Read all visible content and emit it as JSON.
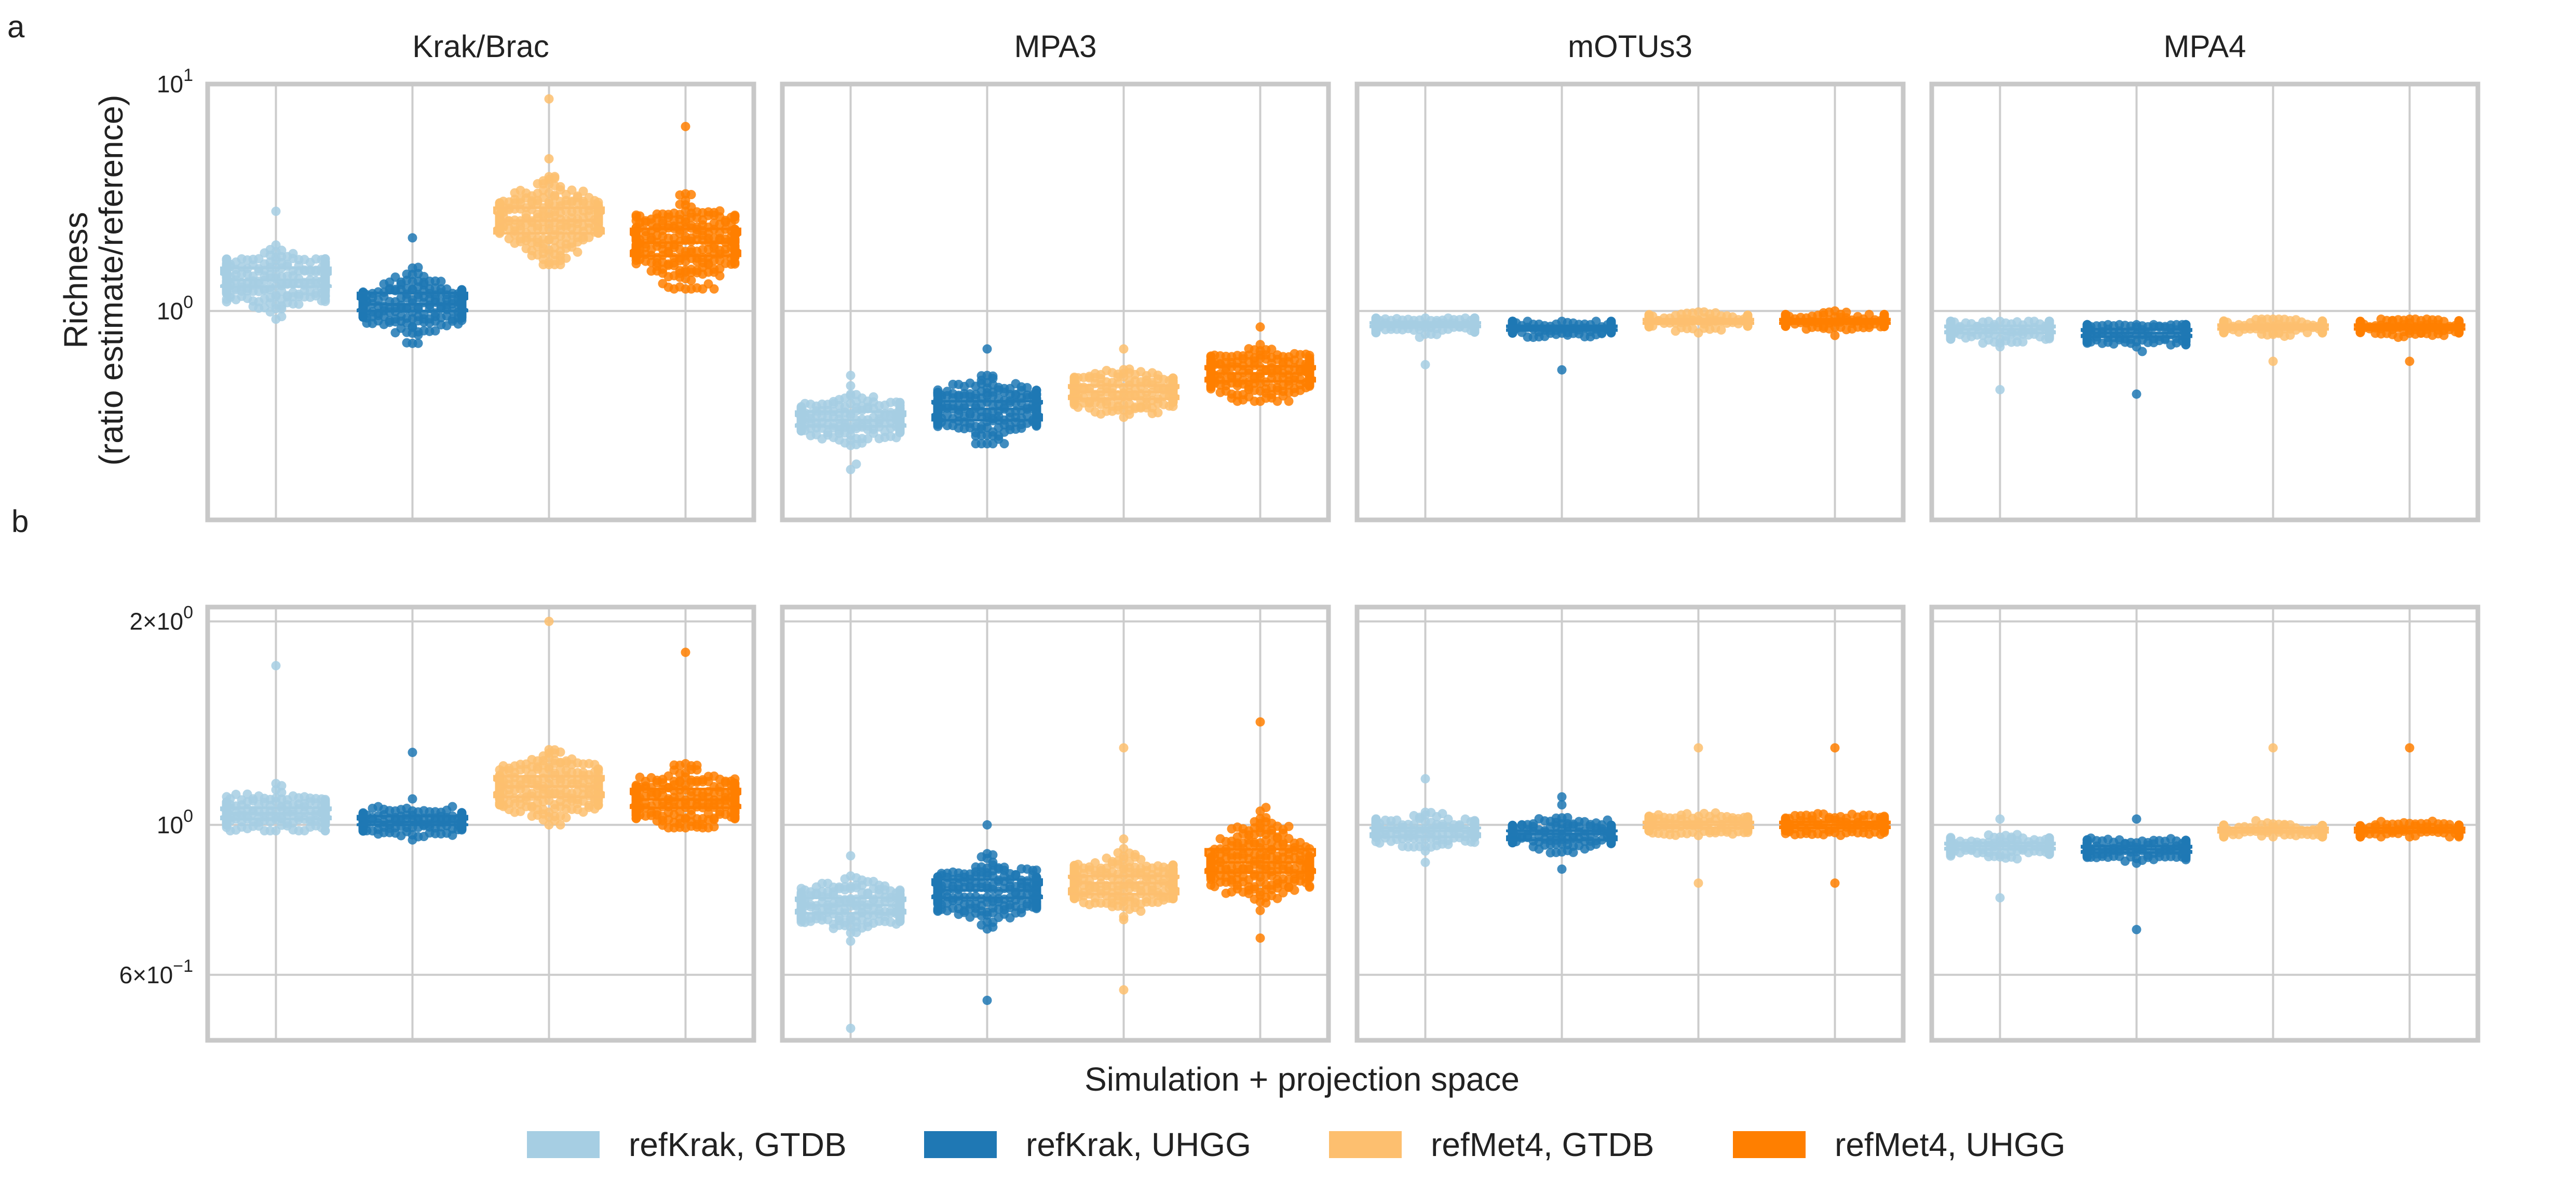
{
  "figure": {
    "panel_labels": [
      "a",
      "b"
    ],
    "xlabel": "Simulation + projection space",
    "ylabel_lines": [
      "Richness",
      "(ratio estimate/reference)"
    ]
  },
  "legend": [
    {
      "label": "refKrak, GTDB",
      "color": "#a6cee3"
    },
    {
      "label": "refKrak, UHGG",
      "color": "#1f78b4"
    },
    {
      "label": "refMet4, GTDB",
      "color": "#fdbf6f"
    },
    {
      "label": "refMet4, UHGG",
      "color": "#ff7f00"
    }
  ],
  "chart_data": [
    {
      "type": "box-swarm",
      "panel": "a",
      "yscale": "log",
      "ylim": [
        0.12,
        10
      ],
      "yticks": [
        {
          "value": 1,
          "label": "10^0"
        },
        {
          "value": 10,
          "label": "10^1"
        }
      ],
      "categories": [
        "refKrak, GTDB",
        "refKrak, UHGG",
        "refMet4, GTDB",
        "refMet4, UHGG"
      ],
      "colors": [
        "#a6cee3",
        "#1f78b4",
        "#fdbf6f",
        "#ff7f00"
      ],
      "facets": [
        {
          "title": "Krak/Brac",
          "series": [
            {
              "name": "refKrak, GTDB",
              "q1": 1.28,
              "median": 1.37,
              "q3": 1.55,
              "min": 0.92,
              "max": 2.75
            },
            {
              "name": "refKrak, UHGG",
              "q1": 1.0,
              "median": 1.07,
              "q3": 1.2,
              "min": 0.72,
              "max": 2.1
            },
            {
              "name": "refMet4, GTDB",
              "q1": 2.2,
              "median": 2.5,
              "q3": 2.85,
              "min": 1.6,
              "max": 8.6
            },
            {
              "name": "refMet4, UHGG",
              "q1": 1.75,
              "median": 2.0,
              "q3": 2.3,
              "min": 1.25,
              "max": 6.5
            }
          ]
        },
        {
          "title": "MPA3",
          "series": [
            {
              "name": "refKrak, GTDB",
              "q1": 0.31,
              "median": 0.33,
              "q3": 0.36,
              "min": 0.2,
              "max": 0.52
            },
            {
              "name": "refKrak, UHGG",
              "q1": 0.33,
              "median": 0.37,
              "q3": 0.4,
              "min": 0.26,
              "max": 0.68
            },
            {
              "name": "refMet4, GTDB",
              "q1": 0.41,
              "median": 0.44,
              "q3": 0.47,
              "min": 0.34,
              "max": 0.68
            },
            {
              "name": "refMet4, UHGG",
              "q1": 0.49,
              "median": 0.53,
              "q3": 0.57,
              "min": 0.4,
              "max": 0.85
            }
          ]
        },
        {
          "title": "mOTUs3",
          "series": [
            {
              "name": "refKrak, GTDB",
              "q1": 0.85,
              "median": 0.87,
              "q3": 0.89,
              "min": 0.58,
              "max": 0.93
            },
            {
              "name": "refKrak, UHGG",
              "q1": 0.82,
              "median": 0.84,
              "q3": 0.86,
              "min": 0.55,
              "max": 0.9
            },
            {
              "name": "refMet4, GTDB",
              "q1": 0.88,
              "median": 0.9,
              "q3": 0.92,
              "min": 0.8,
              "max": 0.99
            },
            {
              "name": "refMet4, UHGG",
              "q1": 0.88,
              "median": 0.9,
              "q3": 0.92,
              "min": 0.78,
              "max": 1.0
            }
          ]
        },
        {
          "title": "MPA4",
          "series": [
            {
              "name": "refKrak, GTDB",
              "q1": 0.8,
              "median": 0.83,
              "q3": 0.86,
              "min": 0.45,
              "max": 0.9
            },
            {
              "name": "refKrak, UHGG",
              "q1": 0.77,
              "median": 0.8,
              "q3": 0.83,
              "min": 0.43,
              "max": 0.87
            },
            {
              "name": "refMet4, GTDB",
              "q1": 0.83,
              "median": 0.85,
              "q3": 0.87,
              "min": 0.6,
              "max": 0.92
            },
            {
              "name": "refMet4, UHGG",
              "q1": 0.83,
              "median": 0.85,
              "q3": 0.87,
              "min": 0.6,
              "max": 0.92
            }
          ]
        }
      ]
    },
    {
      "type": "box-swarm",
      "panel": "b",
      "yscale": "log",
      "ylim": [
        0.48,
        2.1
      ],
      "yticks": [
        {
          "value": 0.6,
          "label": "6×10^−1"
        },
        {
          "value": 1,
          "label": "10^0"
        },
        {
          "value": 2,
          "label": "2×10^0"
        }
      ],
      "categories": [
        "refKrak, GTDB",
        "refKrak, UHGG",
        "refMet4, GTDB",
        "refMet4, UHGG"
      ],
      "colors": [
        "#a6cee3",
        "#1f78b4",
        "#fdbf6f",
        "#ff7f00"
      ],
      "facets": [
        {
          "title": "Krak/Brac",
          "series": [
            {
              "name": "refKrak, GTDB",
              "q1": 1.02,
              "median": 1.04,
              "q3": 1.06,
              "min": 0.98,
              "max": 1.72
            },
            {
              "name": "refKrak, UHGG",
              "q1": 1.0,
              "median": 1.01,
              "q3": 1.03,
              "min": 0.95,
              "max": 1.28
            },
            {
              "name": "refMet4, GTDB",
              "q1": 1.1,
              "median": 1.14,
              "q3": 1.18,
              "min": 1.0,
              "max": 2.0
            },
            {
              "name": "refMet4, UHGG",
              "q1": 1.06,
              "median": 1.09,
              "q3": 1.13,
              "min": 0.99,
              "max": 1.8
            }
          ]
        },
        {
          "title": "MPA3",
          "series": [
            {
              "name": "refKrak, GTDB",
              "q1": 0.74,
              "median": 0.76,
              "q3": 0.78,
              "min": 0.5,
              "max": 0.9
            },
            {
              "name": "refKrak, UHGG",
              "q1": 0.78,
              "median": 0.8,
              "q3": 0.83,
              "min": 0.55,
              "max": 1.0
            },
            {
              "name": "refMet4, GTDB",
              "q1": 0.79,
              "median": 0.82,
              "q3": 0.84,
              "min": 0.57,
              "max": 1.3
            },
            {
              "name": "refMet4, UHGG",
              "q1": 0.85,
              "median": 0.88,
              "q3": 0.92,
              "min": 0.68,
              "max": 1.42
            }
          ]
        },
        {
          "title": "mOTUs3",
          "series": [
            {
              "name": "refKrak, GTDB",
              "q1": 0.96,
              "median": 0.98,
              "q3": 0.99,
              "min": 0.88,
              "max": 1.17
            },
            {
              "name": "refKrak, UHGG",
              "q1": 0.95,
              "median": 0.97,
              "q3": 0.98,
              "min": 0.86,
              "max": 1.1
            },
            {
              "name": "refMet4, GTDB",
              "q1": 0.99,
              "median": 1.0,
              "q3": 1.01,
              "min": 0.82,
              "max": 1.3
            },
            {
              "name": "refMet4, UHGG",
              "q1": 0.99,
              "median": 1.0,
              "q3": 1.01,
              "min": 0.82,
              "max": 1.3
            }
          ]
        },
        {
          "title": "MPA4",
          "series": [
            {
              "name": "refKrak, GTDB",
              "q1": 0.92,
              "median": 0.93,
              "q3": 0.94,
              "min": 0.78,
              "max": 1.02
            },
            {
              "name": "refKrak, UHGG",
              "q1": 0.91,
              "median": 0.92,
              "q3": 0.93,
              "min": 0.7,
              "max": 1.02
            },
            {
              "name": "refMet4, GTDB",
              "q1": 0.975,
              "median": 0.98,
              "q3": 0.99,
              "min": 0.96,
              "max": 1.3
            },
            {
              "name": "refMet4, UHGG",
              "q1": 0.975,
              "median": 0.98,
              "q3": 0.99,
              "min": 0.96,
              "max": 1.3
            }
          ]
        }
      ]
    }
  ]
}
